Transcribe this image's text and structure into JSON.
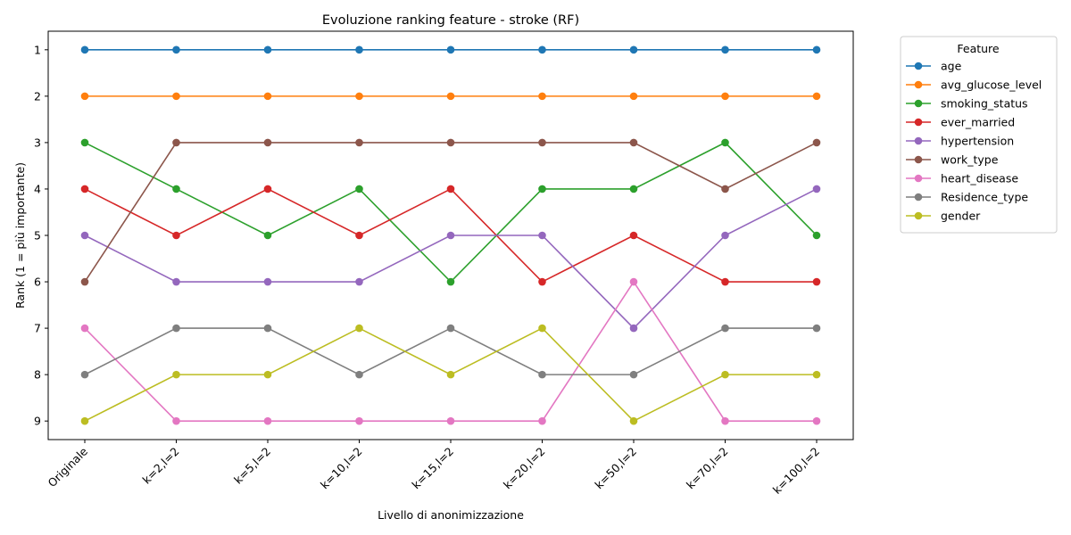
{
  "chart_data": {
    "type": "line",
    "title": "Evoluzione ranking feature - stroke (RF)",
    "xlabel": "Livello di anonimizzazione",
    "ylabel": "Rank (1 = più importante)",
    "categories": [
      "Originale",
      "k=2,l=2",
      "k=5,l=2",
      "k=10,l=2",
      "k=15,l=2",
      "k=20,l=2",
      "k=50,l=2",
      "k=70,l=2",
      "k=100,l=2"
    ],
    "y_ticks": [
      1,
      2,
      3,
      4,
      5,
      6,
      7,
      8,
      9
    ],
    "ylim": [
      9.4,
      0.6
    ],
    "y_inverted": true,
    "grid": false,
    "legend_title": "Feature",
    "legend_position": "outside-right",
    "series": [
      {
        "name": "age",
        "color": "#1f77b4",
        "values": [
          1,
          1,
          1,
          1,
          1,
          1,
          1,
          1,
          1
        ]
      },
      {
        "name": "avg_glucose_level",
        "color": "#ff7f0e",
        "values": [
          2,
          2,
          2,
          2,
          2,
          2,
          2,
          2,
          2
        ]
      },
      {
        "name": "smoking_status",
        "color": "#2ca02c",
        "values": [
          3,
          4,
          5,
          4,
          6,
          4,
          4,
          3,
          5
        ]
      },
      {
        "name": "ever_married",
        "color": "#d62728",
        "values": [
          4,
          5,
          4,
          5,
          4,
          6,
          5,
          6,
          6
        ]
      },
      {
        "name": "hypertension",
        "color": "#9467bd",
        "values": [
          5,
          6,
          6,
          6,
          5,
          5,
          7,
          5,
          4
        ]
      },
      {
        "name": "work_type",
        "color": "#8c564b",
        "values": [
          6,
          3,
          3,
          3,
          3,
          3,
          3,
          4,
          3
        ]
      },
      {
        "name": "heart_disease",
        "color": "#e377c2",
        "values": [
          7,
          9,
          9,
          9,
          9,
          9,
          6,
          9,
          9
        ]
      },
      {
        "name": "Residence_type",
        "color": "#7f7f7f",
        "values": [
          8,
          7,
          7,
          8,
          7,
          8,
          8,
          7,
          7
        ]
      },
      {
        "name": "gender",
        "color": "#bcbd22",
        "values": [
          9,
          8,
          8,
          7,
          8,
          7,
          9,
          8,
          8
        ]
      }
    ]
  }
}
